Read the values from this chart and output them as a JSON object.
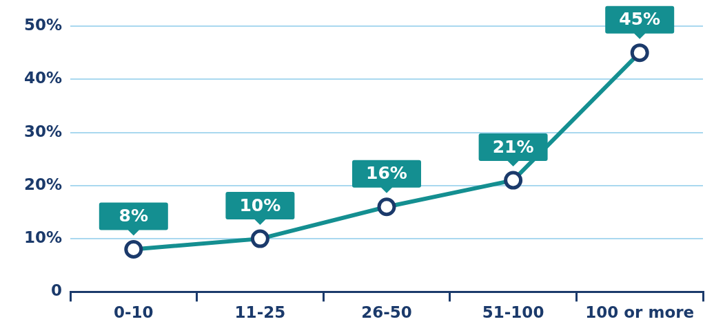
{
  "chart_data": {
    "type": "line",
    "categories": [
      "0-10",
      "11-25",
      "26-50",
      "51-100",
      "100 or more"
    ],
    "series": [
      {
        "color": "#148f91",
        "values": [
          8,
          10,
          16,
          21,
          45
        ],
        "value_labels": [
          "8%",
          "10%",
          "16%",
          "21%",
          "45%"
        ]
      }
    ],
    "ylim": [
      0,
      50
    ],
    "yticks": [
      0,
      {
        "value": 10,
        "label": "10%"
      },
      {
        "value": 20,
        "label": "20%"
      },
      {
        "value": 30,
        "label": "30%"
      },
      {
        "value": 40,
        "label": "40%"
      },
      {
        "value": 50,
        "label": "50%"
      }
    ],
    "grid": "y",
    "legend": false,
    "marker": "circle",
    "line_style": "solid"
  }
}
